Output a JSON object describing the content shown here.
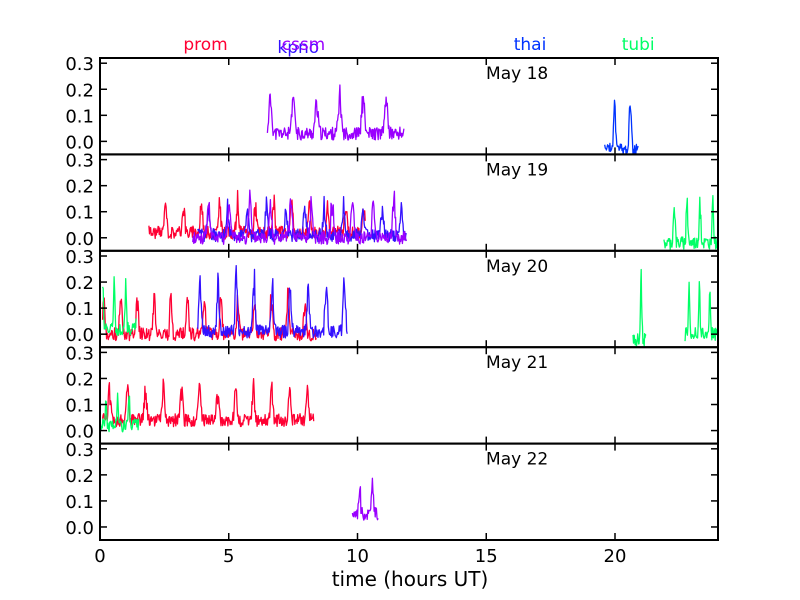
{
  "chart_data": {
    "type": "line",
    "xlabel": "time (hours UT)",
    "xlim": [
      0,
      24
    ],
    "xticks": [
      0,
      5,
      10,
      15,
      20
    ],
    "ylim": [
      -0.05,
      0.32
    ],
    "yticks": [
      0.0,
      0.1,
      0.2,
      0.3
    ],
    "ytick_labels": [
      "0.0",
      "0.1",
      "0.2",
      "0.3"
    ],
    "stations": [
      {
        "name": "prom",
        "color": "#ff0033",
        "label_x": 4.1
      },
      {
        "name": "kpno",
        "color": "#3311ff",
        "label_x": 7.7
      },
      {
        "name": "cssm",
        "color": "#9900ff",
        "label_x": 7.9
      },
      {
        "name": "thai",
        "color": "#0033ff",
        "label_x": 16.7
      },
      {
        "name": "tubi",
        "color": "#00ff66",
        "label_x": 20.9
      }
    ],
    "panels": [
      {
        "label": "May 18",
        "series": [
          {
            "station": "cssm",
            "x0": 6.5,
            "x1": 11.8,
            "seed": 11,
            "base": 0.03,
            "amp": 0.15,
            "period": 0.9
          },
          {
            "station": "thai",
            "x0": 19.6,
            "x1": 20.9,
            "seed": 23,
            "base": -0.03,
            "amp": 0.22,
            "period": 0.6
          }
        ]
      },
      {
        "label": "May 19",
        "series": [
          {
            "station": "prom",
            "x0": 1.9,
            "x1": 10.3,
            "seed": 31,
            "base": 0.02,
            "amp": 0.13,
            "period": 0.7
          },
          {
            "station": "kpno",
            "x0": 3.8,
            "x1": 11.9,
            "seed": 37,
            "base": 0.01,
            "amp": 0.12,
            "period": 0.75
          },
          {
            "station": "cssm",
            "x0": 3.6,
            "x1": 11.9,
            "seed": 41,
            "base": 0.0,
            "amp": 0.16,
            "period": 0.8
          },
          {
            "station": "tubi",
            "x0": 21.9,
            "x1": 24.0,
            "seed": 43,
            "base": -0.02,
            "amp": 0.2,
            "period": 0.5
          }
        ]
      },
      {
        "label": "May 20",
        "series": [
          {
            "station": "prom",
            "x0": 0.1,
            "x1": 8.4,
            "seed": 53,
            "base": 0.0,
            "amp": 0.16,
            "period": 0.65
          },
          {
            "station": "tubi",
            "x0": 0.1,
            "x1": 1.4,
            "seed": 59,
            "base": 0.02,
            "amp": 0.2,
            "period": 0.45
          },
          {
            "station": "kpno",
            "x0": 3.8,
            "x1": 9.6,
            "seed": 61,
            "base": 0.01,
            "amp": 0.22,
            "period": 0.7
          },
          {
            "station": "tubi",
            "x0": 20.7,
            "x1": 21.2,
            "seed": 67,
            "base": -0.02,
            "amp": 0.25,
            "period": 0.4
          },
          {
            "station": "tubi",
            "x0": 22.7,
            "x1": 24.0,
            "seed": 71,
            "base": 0.0,
            "amp": 0.2,
            "period": 0.4
          }
        ]
      },
      {
        "label": "May 21",
        "series": [
          {
            "station": "prom",
            "x0": 0.1,
            "x1": 8.3,
            "seed": 73,
            "base": 0.04,
            "amp": 0.14,
            "period": 0.7
          },
          {
            "station": "tubi",
            "x0": 0.0,
            "x1": 1.5,
            "seed": 79,
            "base": 0.02,
            "amp": 0.12,
            "period": 0.45
          }
        ]
      },
      {
        "label": "May 22",
        "series": [
          {
            "station": "cssm",
            "x0": 9.8,
            "x1": 10.8,
            "seed": 83,
            "base": 0.05,
            "amp": 0.15,
            "period": 0.5
          }
        ]
      }
    ]
  }
}
